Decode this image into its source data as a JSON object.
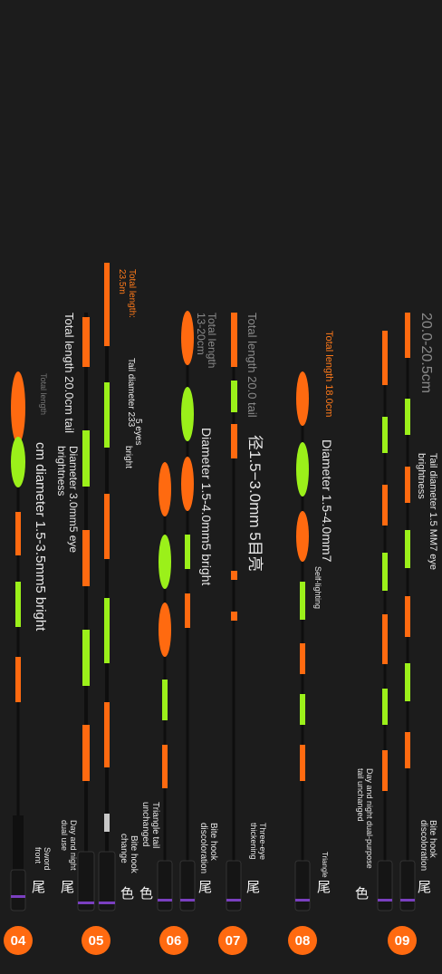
{
  "colors": {
    "background": "#1c1c1c",
    "orange": "#ff6a10",
    "green": "#9bf01a",
    "stem": "#0e0e0e",
    "ring": "#7a3fbf"
  },
  "floats": [
    {
      "id": "04",
      "texts": [
        "Sword",
        "front",
        "Total length",
        "cm diameter 1.5-3.5mm5 bright"
      ],
      "tail_char": "尾"
    },
    {
      "id": "05",
      "texts": [
        "Total length 20.0cm tail",
        "Diameter 3.0mm5 eye",
        "brightness",
        "Day and night",
        "dual use",
        "Tail diameter 233",
        "5 eyes",
        "bright",
        "Total length:",
        "23.5m",
        "Bite hook",
        "change"
      ],
      "tail_chars": [
        "尾",
        "色"
      ]
    },
    {
      "id": "06",
      "texts": [
        "Total length",
        "13-20cm",
        "Diameter 1.5-4.0mm5 bright",
        "Triangle tail",
        "unchanged",
        "Bite hook",
        "discoloration"
      ],
      "tail_chars": [
        "色",
        "尾"
      ]
    },
    {
      "id": "07",
      "texts": [
        "Total length 20.0 tail",
        "径1.5−3.0mm  5目亮",
        "Three-eye",
        "thickening"
      ],
      "tail_char": "尾"
    },
    {
      "id": "08",
      "texts": [
        "Total length 18.0cm",
        "Diameter 1.5-4.0mm7",
        "Self-lighting",
        "Triangle"
      ],
      "tail_char": "尾"
    },
    {
      "id": "09",
      "texts": [
        "20.0-20.5cm",
        "Tail diameter 1.5 MM7 eye",
        "brightness",
        "Day and night dual-purpose",
        "tail unchanged",
        "Bite hook",
        "discoloration"
      ],
      "tail_chars": [
        "色",
        "尾"
      ]
    }
  ]
}
